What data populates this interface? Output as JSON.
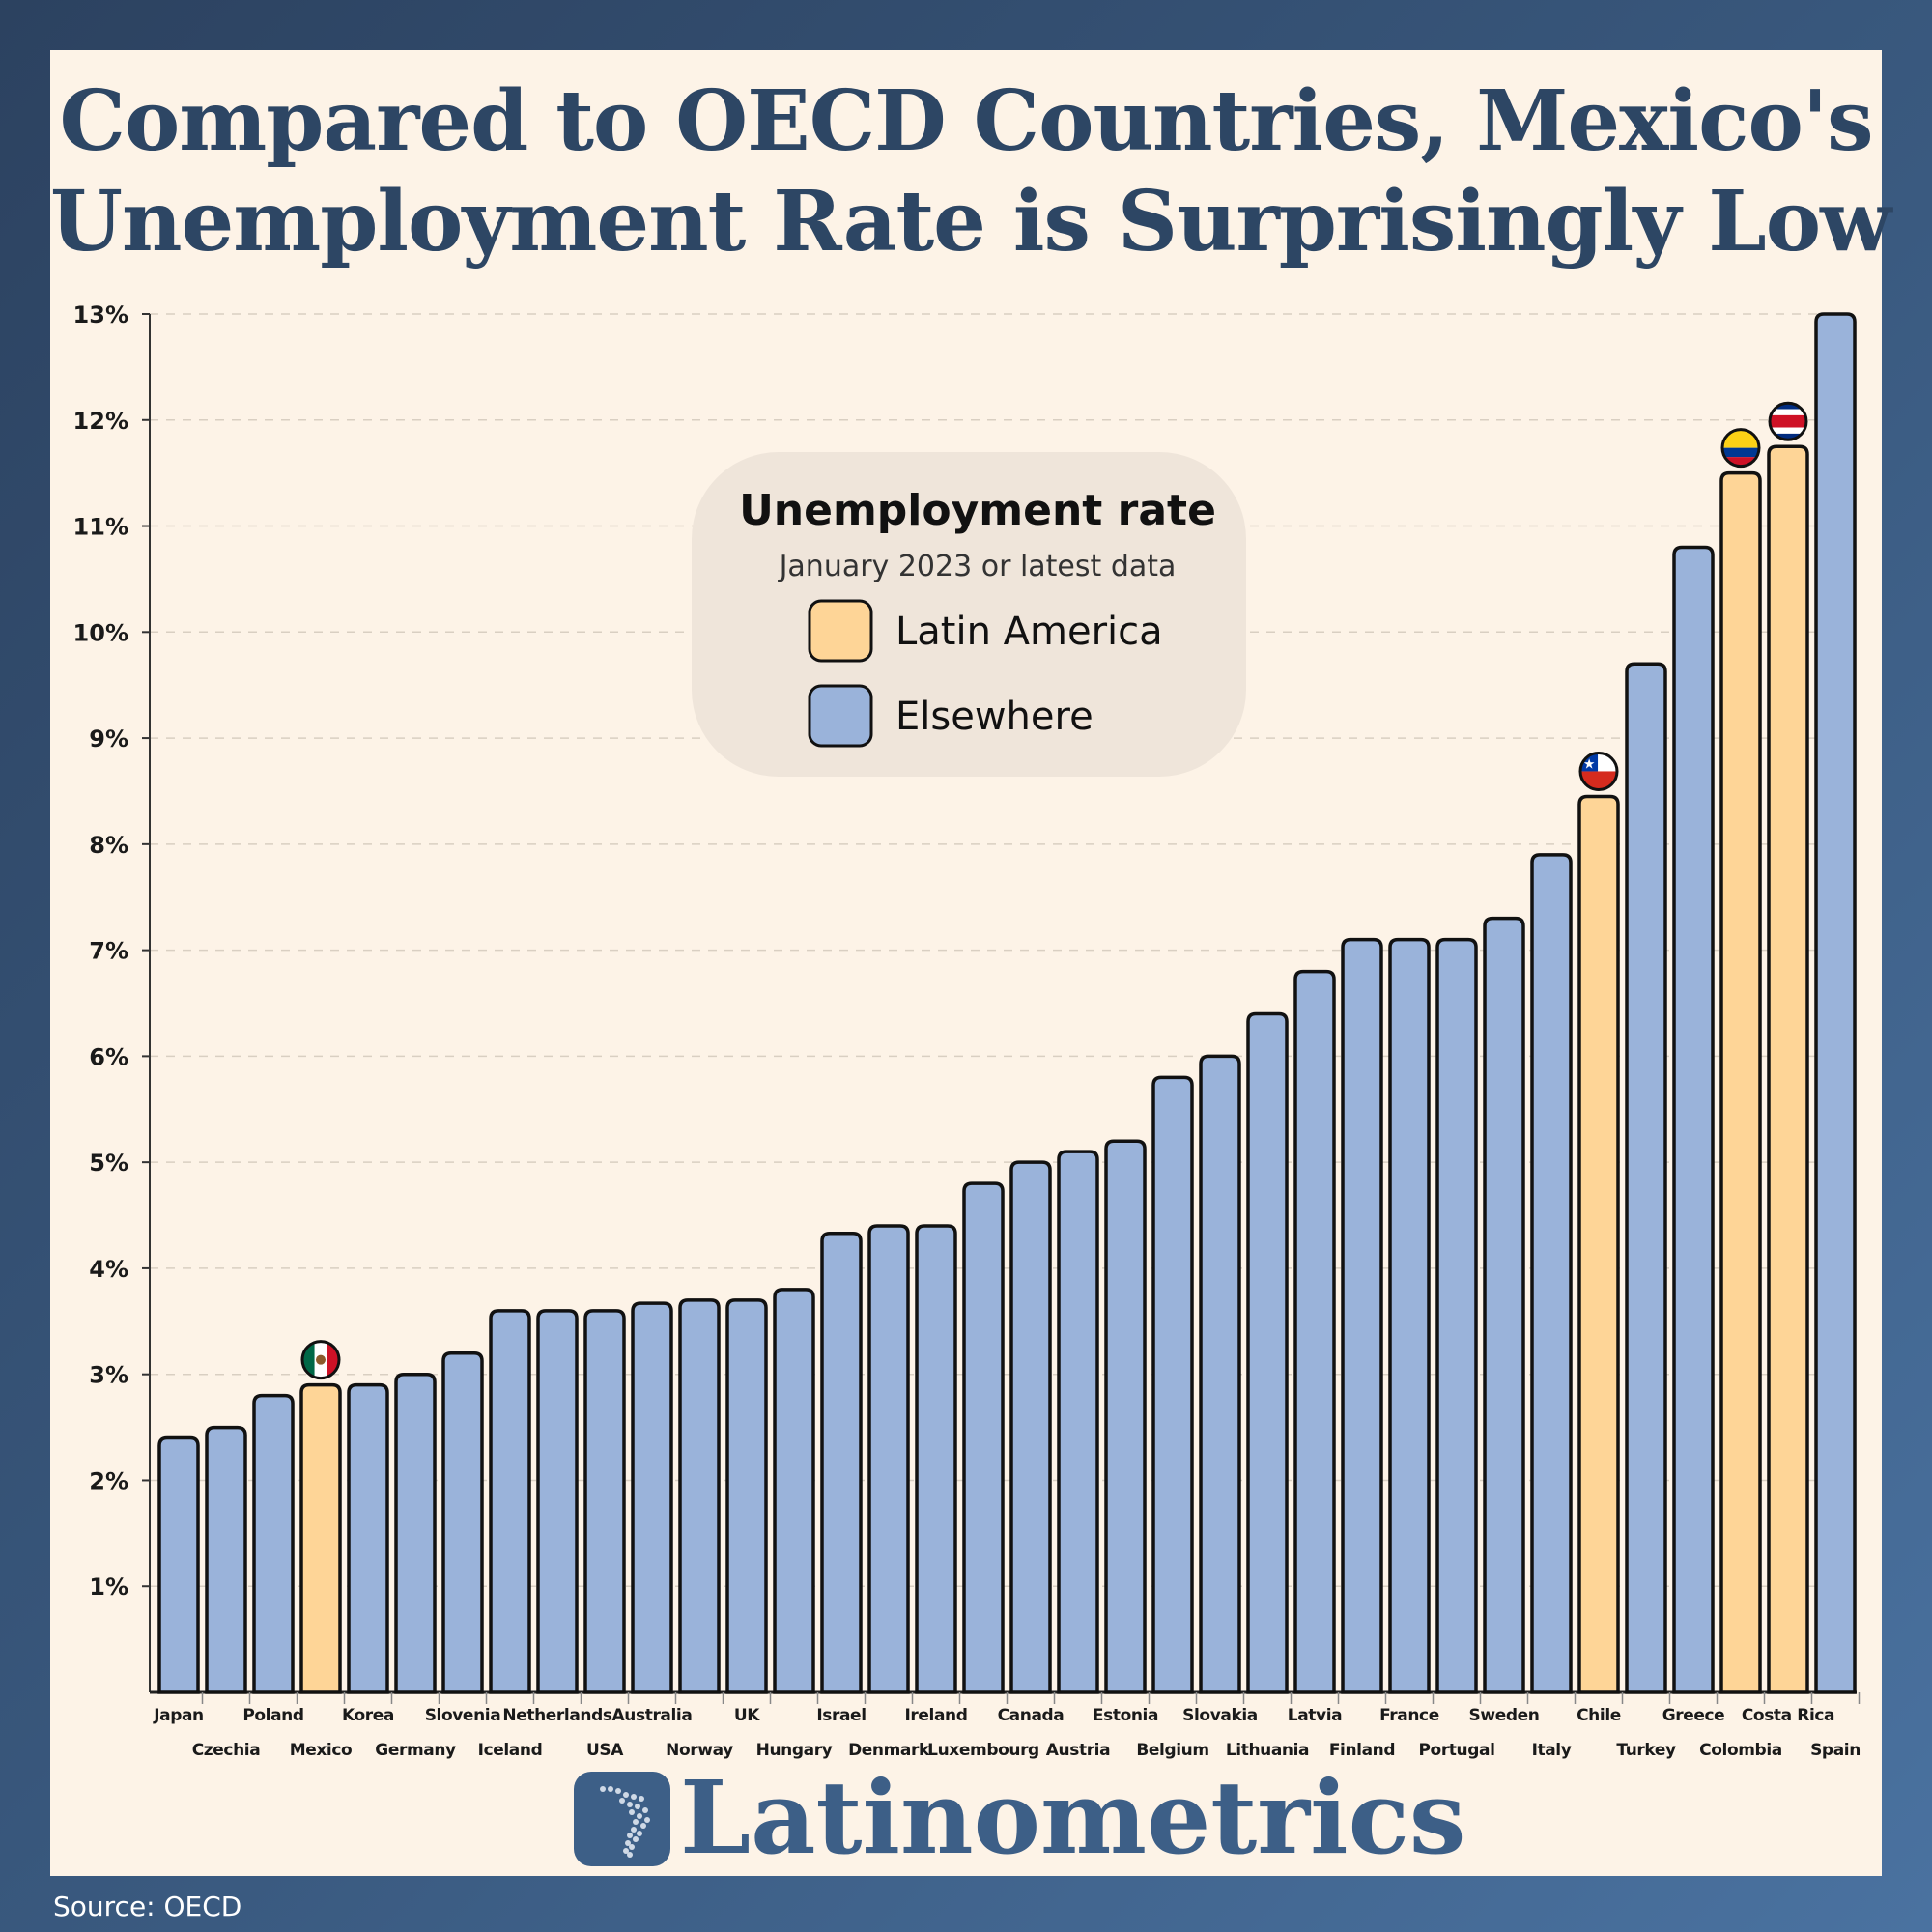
{
  "title_line1": "Compared to OECD Countries, Mexico's",
  "title_line2": "Unemployment Rate is Surprisingly Low",
  "source": "Source: OECD",
  "brand": "Latinometrics",
  "colors": {
    "latin_america": "#fed597",
    "elsewhere": "#9ab3da",
    "title": "#2d4664",
    "card_background": "#fdf3e7"
  },
  "chart_data": {
    "type": "bar",
    "legend": {
      "title": "Unemployment rate",
      "subtitle": "January 2023 or latest data",
      "entries": [
        {
          "label": "Latin America",
          "color": "#fed597"
        },
        {
          "label": "Elsewhere",
          "color": "#9ab3da"
        }
      ],
      "placement": "top-center"
    },
    "ylim": [
      0,
      13
    ],
    "y_tick_labels": [
      "1%",
      "2%",
      "3%",
      "4%",
      "5%",
      "6%",
      "7%",
      "8%",
      "9%",
      "10%",
      "11%",
      "12%",
      "13%"
    ],
    "grid": true,
    "categories": [
      "Japan",
      "Czechia",
      "Poland",
      "Mexico",
      "Korea",
      "Germany",
      "Slovenia",
      "Iceland",
      "Netherlands",
      "USA",
      "Australia",
      "Norway",
      "UK",
      "Hungary",
      "Israel",
      "Denmark",
      "Ireland",
      "Luxembourg",
      "Canada",
      "Austria",
      "Estonia",
      "Belgium",
      "Slovakia",
      "Lithuania",
      "Latvia",
      "Finland",
      "France",
      "Portugal",
      "Sweden",
      "Italy",
      "Chile",
      "Turkey",
      "Greece",
      "Colombia",
      "Costa Rica",
      "Spain"
    ],
    "values": [
      2.4,
      2.5,
      2.8,
      2.9,
      2.9,
      3.0,
      3.2,
      3.6,
      3.6,
      3.6,
      3.67,
      3.7,
      3.7,
      3.8,
      4.33,
      4.4,
      4.4,
      4.8,
      5.0,
      5.1,
      5.2,
      5.8,
      6.0,
      6.4,
      6.8,
      7.1,
      7.1,
      7.1,
      7.3,
      7.9,
      8.45,
      9.7,
      10.8,
      11.5,
      11.75,
      13.0
    ],
    "group": [
      "Elsewhere",
      "Elsewhere",
      "Elsewhere",
      "Latin America",
      "Elsewhere",
      "Elsewhere",
      "Elsewhere",
      "Elsewhere",
      "Elsewhere",
      "Elsewhere",
      "Elsewhere",
      "Elsewhere",
      "Elsewhere",
      "Elsewhere",
      "Elsewhere",
      "Elsewhere",
      "Elsewhere",
      "Elsewhere",
      "Elsewhere",
      "Elsewhere",
      "Elsewhere",
      "Elsewhere",
      "Elsewhere",
      "Elsewhere",
      "Elsewhere",
      "Elsewhere",
      "Elsewhere",
      "Elsewhere",
      "Elsewhere",
      "Elsewhere",
      "Latin America",
      "Elsewhere",
      "Elsewhere",
      "Latin America",
      "Latin America",
      "Elsewhere"
    ],
    "flags": {
      "Mexico": "mexico-flag-icon",
      "Chile": "chile-flag-icon",
      "Colombia": "colombia-flag-icon",
      "Costa Rica": "costa-rica-flag-icon"
    }
  }
}
